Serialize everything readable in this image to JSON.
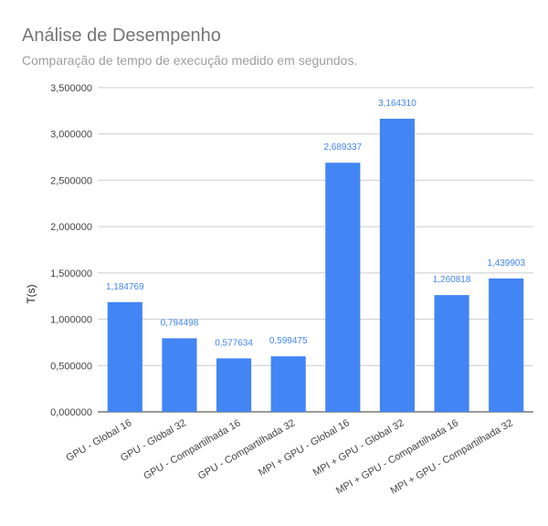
{
  "chart_data": {
    "type": "bar",
    "title": "Análise de Desempenho",
    "subtitle": "Comparação de tempo de execução medido em segundos.",
    "ylabel": "T(s)",
    "xlabel": "",
    "categories": [
      "GPU - Global 16",
      "GPU - Global 32",
      "GPU - Compartilhada 16",
      "GPU - Compartilhada 32",
      "MPI + GPU - Global 16",
      "MPI + GPU - Global 32",
      "MPI + GPU - Compartilhada 16",
      "MPI + GPU - Compartilhada 32"
    ],
    "values": [
      1.184769,
      0.794498,
      0.577634,
      0.599475,
      2.689337,
      3.16431,
      1.260818,
      1.439903
    ],
    "value_labels": [
      "1,184769",
      "0,794498",
      "0,577634",
      "0,599475",
      "2,689337",
      "3,164310",
      "1,260818",
      "1,439903"
    ],
    "ylim": [
      0,
      3.5
    ],
    "yticks": [
      0,
      0.5,
      1.0,
      1.5,
      2.0,
      2.5,
      3.0,
      3.5
    ],
    "ytick_labels": [
      "0,000000",
      "0,500000",
      "1,000000",
      "1,500000",
      "2,000000",
      "2,500000",
      "3,000000",
      "3,500000"
    ],
    "grid": true,
    "legend": "none",
    "bar_color": "#4285f4",
    "label_color": "#4285f4"
  }
}
